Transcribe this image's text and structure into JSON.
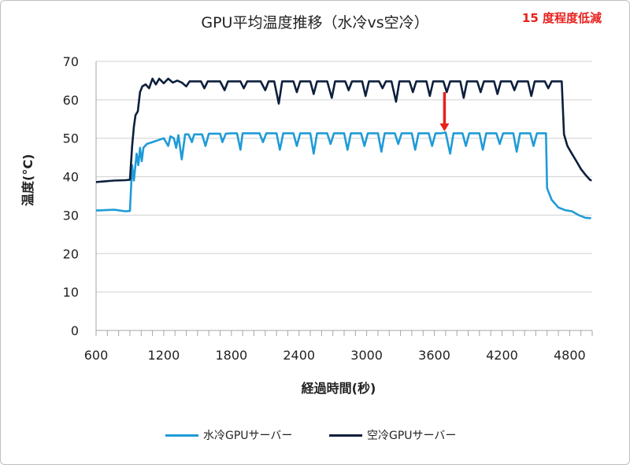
{
  "chart_data": {
    "type": "line",
    "title": "GPU平均温度推移（水冷vs空冷）",
    "annotation": "15 度程度低減",
    "xlabel": "経過時間(秒)",
    "ylabel": "温度(°C)",
    "xlim": [
      600,
      5000
    ],
    "ylim": [
      0,
      70
    ],
    "xticks": [
      "600",
      "1200",
      "1800",
      "2400",
      "3000",
      "3600",
      "4200",
      "4800"
    ],
    "yticks": [
      "0",
      "10",
      "20",
      "30",
      "40",
      "50",
      "60",
      "70"
    ],
    "grid": "horizontal",
    "legend_position": "bottom",
    "series": [
      {
        "name": "水冷GPUサーバー",
        "color": "#1f9bd7",
        "points": [
          [
            600,
            31.2
          ],
          [
            680,
            31.3
          ],
          [
            760,
            31.4
          ],
          [
            860,
            31.0
          ],
          [
            900,
            31.1
          ],
          [
            920,
            43
          ],
          [
            935,
            39
          ],
          [
            960,
            46
          ],
          [
            975,
            43
          ],
          [
            990,
            47.5
          ],
          [
            1005,
            44
          ],
          [
            1020,
            47.5
          ],
          [
            1050,
            48.5
          ],
          [
            1100,
            49
          ],
          [
            1150,
            49.5
          ],
          [
            1200,
            50
          ],
          [
            1240,
            48
          ],
          [
            1260,
            50.5
          ],
          [
            1290,
            50
          ],
          [
            1310,
            47.5
          ],
          [
            1330,
            50.8
          ],
          [
            1360,
            44.5
          ],
          [
            1390,
            51
          ],
          [
            1420,
            51
          ],
          [
            1450,
            49
          ],
          [
            1470,
            51
          ],
          [
            1500,
            51
          ],
          [
            1540,
            51
          ],
          [
            1570,
            48
          ],
          [
            1600,
            51.2
          ],
          [
            1650,
            51.2
          ],
          [
            1700,
            51.2
          ],
          [
            1720,
            49
          ],
          [
            1750,
            51.2
          ],
          [
            1800,
            51.3
          ],
          [
            1850,
            51.3
          ],
          [
            1880,
            47
          ],
          [
            1900,
            51.3
          ],
          [
            1950,
            51.3
          ],
          [
            2000,
            51.3
          ],
          [
            2050,
            51.3
          ],
          [
            2080,
            49
          ],
          [
            2110,
            51.3
          ],
          [
            2160,
            51.3
          ],
          [
            2200,
            51.3
          ],
          [
            2230,
            47
          ],
          [
            2260,
            51.3
          ],
          [
            2300,
            51.3
          ],
          [
            2350,
            51.3
          ],
          [
            2380,
            48
          ],
          [
            2410,
            51.3
          ],
          [
            2450,
            51.3
          ],
          [
            2500,
            51.3
          ],
          [
            2530,
            46
          ],
          [
            2560,
            51.3
          ],
          [
            2600,
            51.3
          ],
          [
            2650,
            51.3
          ],
          [
            2680,
            48.5
          ],
          [
            2710,
            51.3
          ],
          [
            2760,
            51.3
          ],
          [
            2800,
            51.3
          ],
          [
            2830,
            47
          ],
          [
            2860,
            51.3
          ],
          [
            2900,
            51.3
          ],
          [
            2950,
            51.3
          ],
          [
            2980,
            48
          ],
          [
            3010,
            51.3
          ],
          [
            3060,
            51.3
          ],
          [
            3100,
            51.3
          ],
          [
            3130,
            46.5
          ],
          [
            3160,
            51.3
          ],
          [
            3200,
            51.3
          ],
          [
            3250,
            51.3
          ],
          [
            3280,
            48.5
          ],
          [
            3310,
            51.3
          ],
          [
            3360,
            51.3
          ],
          [
            3400,
            51.3
          ],
          [
            3430,
            47
          ],
          [
            3460,
            51.3
          ],
          [
            3500,
            51.3
          ],
          [
            3550,
            51.3
          ],
          [
            3580,
            48
          ],
          [
            3610,
            51.3
          ],
          [
            3660,
            51.3
          ],
          [
            3700,
            51.5
          ],
          [
            3740,
            46
          ],
          [
            3770,
            51.3
          ],
          [
            3800,
            51.3
          ],
          [
            3850,
            51.3
          ],
          [
            3880,
            48
          ],
          [
            3910,
            51.3
          ],
          [
            3960,
            51.3
          ],
          [
            4000,
            51.3
          ],
          [
            4030,
            47
          ],
          [
            4060,
            51.3
          ],
          [
            4100,
            51.3
          ],
          [
            4150,
            51.3
          ],
          [
            4180,
            48.5
          ],
          [
            4210,
            51.3
          ],
          [
            4260,
            51.3
          ],
          [
            4300,
            51.3
          ],
          [
            4330,
            46.5
          ],
          [
            4360,
            51.3
          ],
          [
            4400,
            51.3
          ],
          [
            4450,
            51.3
          ],
          [
            4480,
            48
          ],
          [
            4510,
            51.3
          ],
          [
            4560,
            51.3
          ],
          [
            4590,
            51.3
          ],
          [
            4600,
            37
          ],
          [
            4640,
            34
          ],
          [
            4700,
            32
          ],
          [
            4760,
            31.3
          ],
          [
            4820,
            31
          ],
          [
            4880,
            30
          ],
          [
            4940,
            29.3
          ],
          [
            4990,
            29.2
          ]
        ]
      },
      {
        "name": "空冷GPUサーバー",
        "color": "#0d1f3c",
        "points": [
          [
            600,
            38.6
          ],
          [
            680,
            38.8
          ],
          [
            760,
            39
          ],
          [
            860,
            39.1
          ],
          [
            900,
            39.2
          ],
          [
            920,
            48
          ],
          [
            935,
            53
          ],
          [
            950,
            56
          ],
          [
            970,
            57
          ],
          [
            990,
            62
          ],
          [
            1010,
            63.5
          ],
          [
            1040,
            64
          ],
          [
            1070,
            63
          ],
          [
            1100,
            65.5
          ],
          [
            1130,
            64
          ],
          [
            1160,
            65.5
          ],
          [
            1200,
            64.3
          ],
          [
            1240,
            65.5
          ],
          [
            1280,
            64.5
          ],
          [
            1320,
            65
          ],
          [
            1360,
            64.5
          ],
          [
            1400,
            63.5
          ],
          [
            1430,
            64.8
          ],
          [
            1480,
            64.8
          ],
          [
            1530,
            64.8
          ],
          [
            1560,
            63
          ],
          [
            1590,
            64.8
          ],
          [
            1650,
            64.8
          ],
          [
            1700,
            64.8
          ],
          [
            1740,
            62.5
          ],
          [
            1770,
            64.8
          ],
          [
            1820,
            64.8
          ],
          [
            1880,
            64.8
          ],
          [
            1910,
            63
          ],
          [
            1940,
            64.8
          ],
          [
            2000,
            64.8
          ],
          [
            2060,
            64.8
          ],
          [
            2100,
            62.5
          ],
          [
            2130,
            64.8
          ],
          [
            2180,
            64.8
          ],
          [
            2220,
            59
          ],
          [
            2250,
            64.8
          ],
          [
            2300,
            64.8
          ],
          [
            2350,
            64.8
          ],
          [
            2380,
            62
          ],
          [
            2410,
            64.8
          ],
          [
            2460,
            64.8
          ],
          [
            2500,
            64.8
          ],
          [
            2530,
            61.5
          ],
          [
            2560,
            64.8
          ],
          [
            2610,
            64.8
          ],
          [
            2650,
            64.8
          ],
          [
            2690,
            60.5
          ],
          [
            2720,
            64.8
          ],
          [
            2770,
            64.8
          ],
          [
            2810,
            64.8
          ],
          [
            2840,
            62.5
          ],
          [
            2870,
            64.8
          ],
          [
            2920,
            64.8
          ],
          [
            2960,
            64.8
          ],
          [
            2990,
            61
          ],
          [
            3020,
            64.8
          ],
          [
            3070,
            64.8
          ],
          [
            3110,
            64.8
          ],
          [
            3140,
            63
          ],
          [
            3170,
            64.8
          ],
          [
            3220,
            64.8
          ],
          [
            3260,
            59.5
          ],
          [
            3290,
            64.8
          ],
          [
            3340,
            64.8
          ],
          [
            3380,
            64.8
          ],
          [
            3410,
            62
          ],
          [
            3440,
            64.8
          ],
          [
            3490,
            64.8
          ],
          [
            3530,
            64.8
          ],
          [
            3560,
            61
          ],
          [
            3590,
            64.8
          ],
          [
            3640,
            64.8
          ],
          [
            3680,
            64.8
          ],
          [
            3710,
            62
          ],
          [
            3740,
            64.8
          ],
          [
            3790,
            64.8
          ],
          [
            3830,
            64.8
          ],
          [
            3860,
            60.5
          ],
          [
            3890,
            64.8
          ],
          [
            3940,
            64.8
          ],
          [
            3980,
            64.8
          ],
          [
            4010,
            62
          ],
          [
            4040,
            64.8
          ],
          [
            4090,
            64.8
          ],
          [
            4130,
            64.8
          ],
          [
            4160,
            61.5
          ],
          [
            4190,
            64.8
          ],
          [
            4240,
            64.8
          ],
          [
            4280,
            64.8
          ],
          [
            4310,
            62.5
          ],
          [
            4340,
            64.8
          ],
          [
            4390,
            64.8
          ],
          [
            4430,
            64.8
          ],
          [
            4460,
            61
          ],
          [
            4490,
            64.8
          ],
          [
            4540,
            64.8
          ],
          [
            4580,
            64.8
          ],
          [
            4610,
            63
          ],
          [
            4640,
            64.8
          ],
          [
            4690,
            64.8
          ],
          [
            4730,
            64.8
          ],
          [
            4750,
            51
          ],
          [
            4780,
            48
          ],
          [
            4820,
            46
          ],
          [
            4860,
            44
          ],
          [
            4900,
            42
          ],
          [
            4940,
            40.5
          ],
          [
            4980,
            39.2
          ],
          [
            4995,
            39
          ]
        ]
      }
    ],
    "marker_arrow": {
      "x": 3690,
      "y_from": 62,
      "y_to": 51.8,
      "color": "#e8201c"
    }
  }
}
